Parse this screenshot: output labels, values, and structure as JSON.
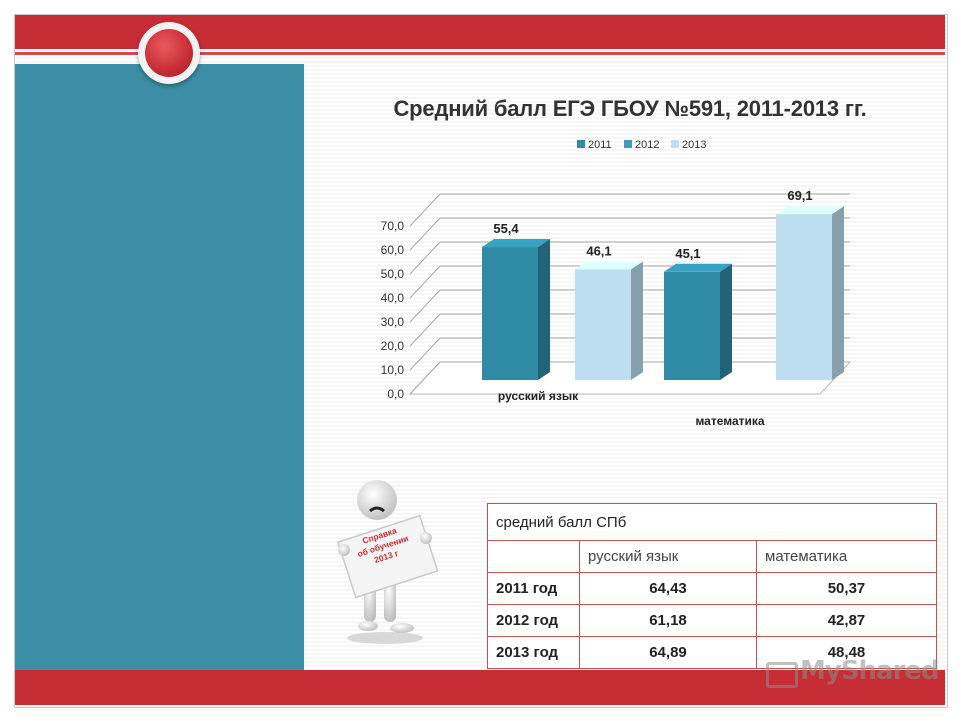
{
  "slide": {
    "title": "Средний балл ЕГЭ ГБОУ №591, 2011-2013 гг.",
    "colors": {
      "accent_red": "#c62d34",
      "panel_teal": "#3b8ea5"
    }
  },
  "chart_data": {
    "type": "bar",
    "title": "Средний балл ЕГЭ ГБОУ №591, 2011-2013 гг.",
    "categories": [
      "русский язык",
      "математика"
    ],
    "series": [
      {
        "name": "2011",
        "values": [
          55.4,
          45.1
        ],
        "color": "#2f8aa6"
      },
      {
        "name": "2012",
        "values": [
          null,
          null
        ],
        "color": "#3b9cc0"
      },
      {
        "name": "2013",
        "values": [
          46.1,
          69.1
        ],
        "color": "#bcdeee"
      }
    ],
    "data_labels": [
      "55,4",
      "46,1",
      "45,1",
      "69,1"
    ],
    "ylim": [
      0,
      70
    ],
    "yticks": [
      "0,0",
      "10,0",
      "20,0",
      "30,0",
      "40,0",
      "50,0",
      "60,0",
      "70,0"
    ],
    "grid": true,
    "legend_position": "top"
  },
  "table": {
    "caption": "средний балл СПб",
    "headers": [
      "",
      "русский язык",
      "математика"
    ],
    "rows": [
      {
        "label": "2011 год",
        "values": [
          "64,43",
          "50,37"
        ]
      },
      {
        "label": "2012 год",
        "values": [
          "61,18",
          "42,87"
        ]
      },
      {
        "label": "2013 год",
        "values": [
          "64,89",
          "48,48"
        ]
      }
    ]
  },
  "illustration": {
    "sign_text": [
      "Справка",
      "об обучении",
      "2013 г"
    ],
    "icon": "figure-holding-sign"
  },
  "watermark": {
    "text": "MyShared",
    "icon": "presentation-board-icon"
  }
}
